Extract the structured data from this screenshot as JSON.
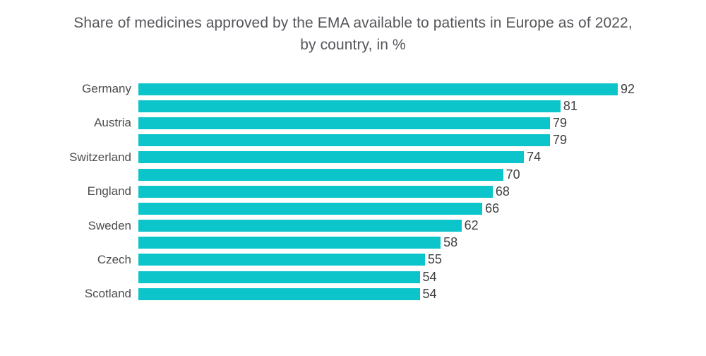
{
  "title": {
    "line1": "Share of medicines approved by the EMA available to patients in Europe as of 2022,",
    "line2": "by country, in %"
  },
  "colors": {
    "bar": "#0cc5cb",
    "title_text": "#55565b",
    "category_text": "#4c4d50",
    "value_text": "#3f4042",
    "background": "#ffffff"
  },
  "chart_data": {
    "type": "bar",
    "orientation": "horizontal",
    "title": "Share of medicines approved by the EMA available to patients in Europe as of 2022, by country, in %",
    "xlabel": "",
    "ylabel": "",
    "xlim": [
      0,
      100
    ],
    "grid": false,
    "legend": false,
    "value_labels_shown": true,
    "categories": [
      "Germany",
      "",
      "Austria",
      "",
      "Switzerland",
      "",
      "England",
      "",
      "Sweden",
      "",
      "Czech",
      "",
      "Scotland"
    ],
    "values": [
      92,
      81,
      79,
      79,
      74,
      70,
      68,
      66,
      62,
      58,
      55,
      54,
      54
    ]
  }
}
